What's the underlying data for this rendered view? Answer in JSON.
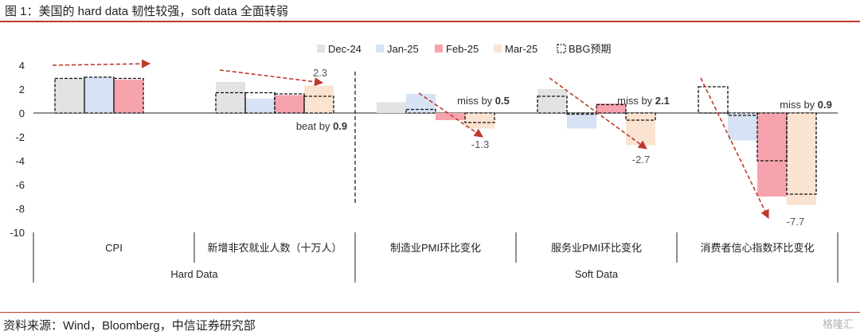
{
  "figure": {
    "title": "图 1：美国的 hard data 韧性较强，soft data 全面转弱",
    "source": "资料来源：Wind，Bloomberg，中信证券研究部",
    "watermark": "格隆汇"
  },
  "colors": {
    "Dec-24": "#e3e3e3",
    "Jan-25": "#d7e3f4",
    "Feb-25": "#f7a3ad",
    "Mar-25": "#fbe3d1",
    "arrow": "#c0392b",
    "rule": "#c0392b"
  },
  "chart_data": {
    "type": "bar",
    "categories": [
      "CPI",
      "新增非农就业人数（十万人）",
      "制造业PMI环比变化",
      "服务业PMI环比变化",
      "消费者信心指数环比变化"
    ],
    "groups": [
      {
        "label": "Hard Data",
        "categories": [
          "CPI",
          "新增非农就业人数（十万人）"
        ]
      },
      {
        "label": "Soft Data",
        "categories": [
          "制造业PMI环比变化",
          "服务业PMI环比变化",
          "消费者信心指数环比变化"
        ]
      }
    ],
    "series": [
      {
        "name": "Dec-24",
        "values": [
          2.9,
          2.6,
          0.9,
          2.0,
          null
        ]
      },
      {
        "name": "Jan-25",
        "values": [
          3.0,
          1.2,
          1.6,
          -1.3,
          -2.3
        ]
      },
      {
        "name": "Feb-25",
        "values": [
          2.8,
          1.5,
          -0.6,
          0.8,
          -7.0
        ]
      },
      {
        "name": "Mar-25",
        "values": [
          null,
          2.3,
          -1.3,
          -2.7,
          -7.7
        ]
      }
    ],
    "expectations": {
      "name": "BBG预期",
      "values": [
        [
          2.9,
          3.0,
          2.9,
          null
        ],
        [
          1.7,
          1.7,
          1.6,
          1.4
        ],
        [
          null,
          0.3,
          null,
          -0.8
        ],
        [
          1.4,
          -0.1,
          0.7,
          -0.6
        ],
        [
          2.2,
          -0.2,
          -4.0,
          -6.8
        ]
      ]
    },
    "ylim": [
      -10,
      4
    ],
    "yticks": [
      -10,
      -8,
      -6,
      -4,
      -2,
      0,
      2,
      4
    ],
    "grid": false,
    "legend": "top",
    "annotations": [
      {
        "category_index": 1,
        "text": "2.3",
        "value": 2.3
      },
      {
        "category_index": 1,
        "prefix": "beat by ",
        "strong": "0.9"
      },
      {
        "category_index": 2,
        "prefix": "miss by ",
        "strong": "0.5"
      },
      {
        "category_index": 2,
        "text": "-1.3",
        "value": -1.3
      },
      {
        "category_index": 3,
        "prefix": "miss by ",
        "strong": "2.1"
      },
      {
        "category_index": 3,
        "text": "-2.7",
        "value": -2.7
      },
      {
        "category_index": 4,
        "prefix": "miss by ",
        "strong": "0.9"
      },
      {
        "category_index": 4,
        "text": "-7.7",
        "value": -7.7
      }
    ]
  }
}
